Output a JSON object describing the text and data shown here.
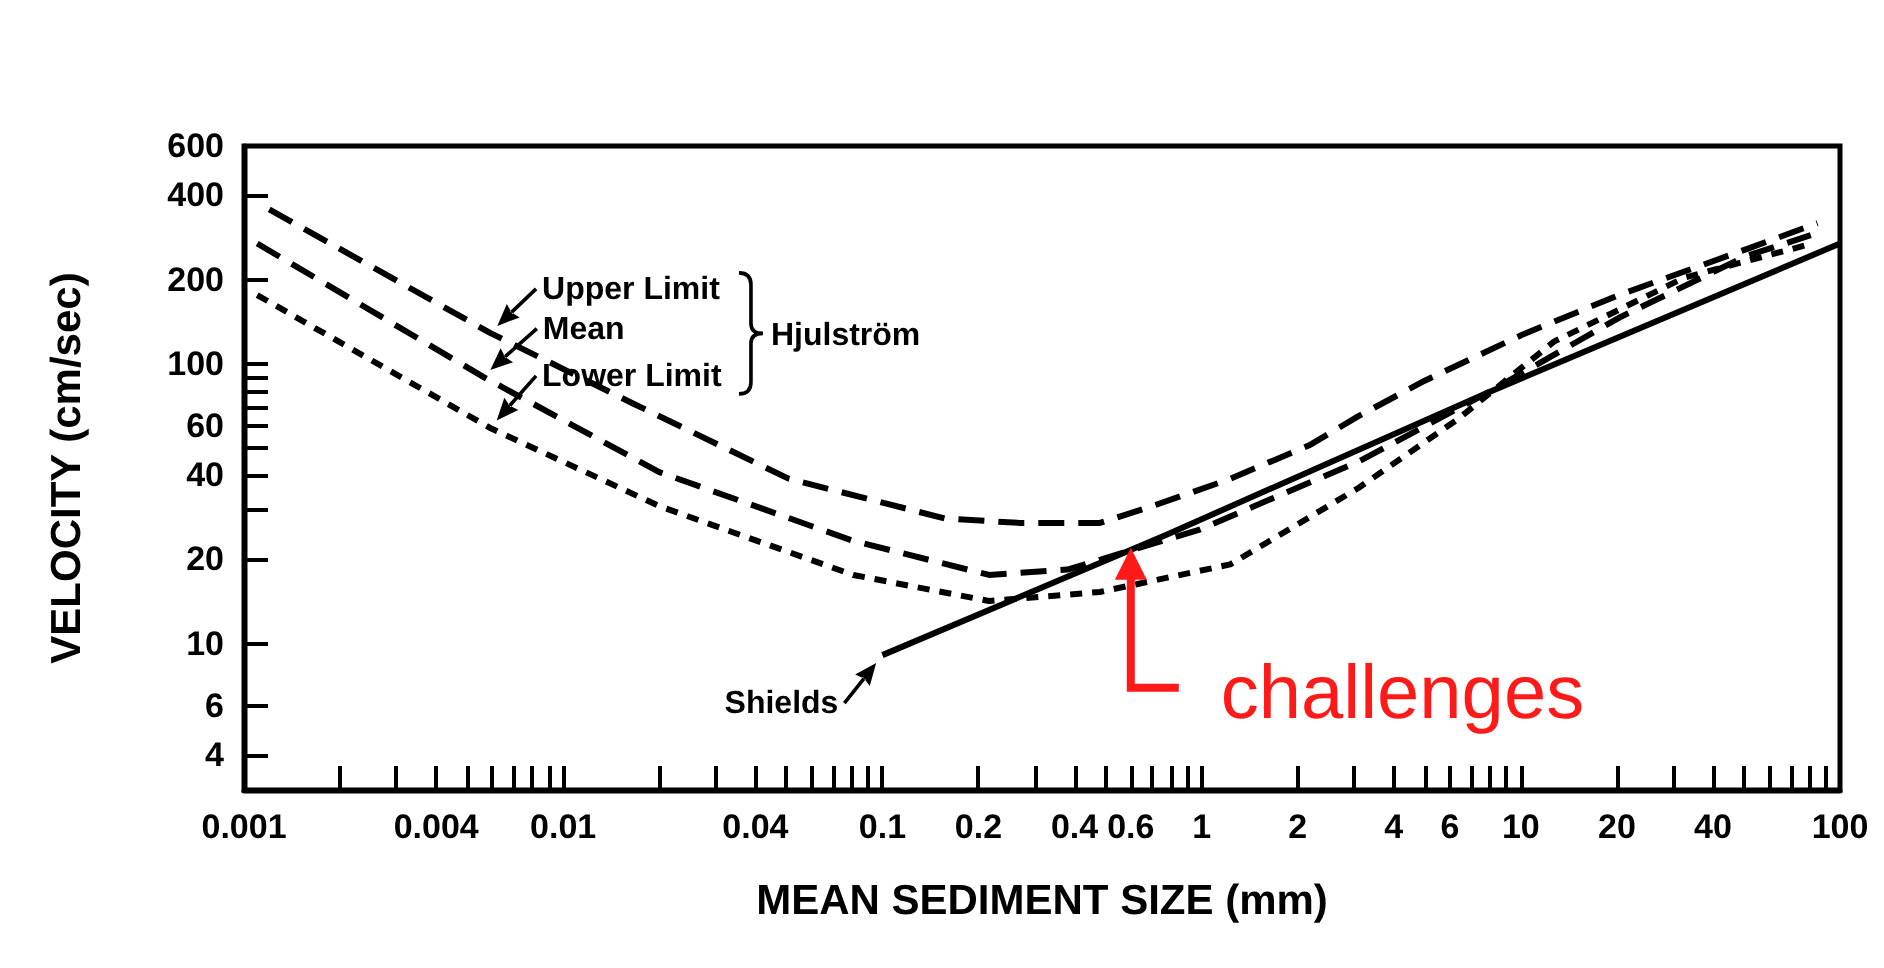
{
  "chart_data": {
    "type": "line",
    "xlabel": "MEAN SEDIMENT SIZE (mm)",
    "ylabel": "VELOCITY (cm/sec)",
    "log": "xy",
    "grid": false,
    "legend": "top left",
    "xlim": [
      0.001,
      100
    ],
    "ylim": [
      3,
      600
    ],
    "xticks": [
      0.001,
      {
        "value": 0.002,
        "label": null
      },
      {
        "value": 0.003,
        "label": null
      },
      0.004,
      {
        "value": 0.005,
        "label": null
      },
      {
        "value": 0.006,
        "label": null
      },
      {
        "value": 0.007,
        "label": null
      },
      {
        "value": 0.008,
        "label": null
      },
      {
        "value": 0.009,
        "label": null
      },
      0.01,
      {
        "value": 0.02,
        "label": null
      },
      {
        "value": 0.03,
        "label": null
      },
      0.04,
      {
        "value": 0.05,
        "label": null
      },
      {
        "value": 0.06,
        "label": null
      },
      {
        "value": 0.07,
        "label": null
      },
      {
        "value": 0.08,
        "label": null
      },
      {
        "value": 0.09,
        "label": null
      },
      0.1,
      0.2,
      {
        "value": 0.3,
        "label": null
      },
      0.4,
      {
        "value": 0.5,
        "label": null
      },
      0.6,
      {
        "value": 0.7,
        "label": null
      },
      {
        "value": 0.8,
        "label": null
      },
      {
        "value": 0.9,
        "label": null
      },
      1,
      2,
      {
        "value": 3,
        "label": null
      },
      4,
      {
        "value": 5,
        "label": null
      },
      6,
      {
        "value": 7,
        "label": null
      },
      {
        "value": 8,
        "label": null
      },
      {
        "value": 9,
        "label": null
      },
      10,
      20,
      {
        "value": 30,
        "label": null
      },
      40,
      {
        "value": 50,
        "label": null
      },
      {
        "value": 60,
        "label": null
      },
      {
        "value": 70,
        "label": null
      },
      {
        "value": 80,
        "label": null
      },
      {
        "value": 90,
        "label": null
      },
      100
    ],
    "yticks": [
      4,
      6,
      10,
      20,
      {
        "value": 30,
        "label": null
      },
      40,
      {
        "value": 50,
        "label": null
      },
      60,
      {
        "value": 70,
        "label": null
      },
      {
        "value": 80,
        "label": null
      },
      {
        "value": 90,
        "label": null
      },
      100,
      200,
      400,
      600
    ],
    "series": [
      {
        "name": "Upper Limit",
        "color": "#000000",
        "line_style": "dashed",
        "x": [
          0.0012,
          0.0059,
          0.0166,
          0.051,
          0.157,
          0.27,
          0.48,
          0.7,
          1.23,
          2.2,
          3.1,
          5.0,
          10.1,
          20.3,
          51,
          85
        ],
        "values": [
          356,
          129,
          72,
          38.8,
          28,
          27,
          27,
          31,
          38.8,
          51.5,
          65,
          87,
          127,
          176,
          257,
          318
        ]
      },
      {
        "name": "Mean",
        "color": "#000000",
        "line_style": "dashed",
        "x": [
          0.0011,
          0.0056,
          0.02,
          0.081,
          0.216,
          0.38,
          0.98,
          3.1,
          7.9,
          20.3,
          51,
          81
        ],
        "values": [
          269,
          90,
          41,
          23.3,
          17.6,
          18.4,
          25.5,
          44.7,
          79,
          146,
          243,
          288
        ]
      },
      {
        "name": "Lower Limit",
        "color": "#000000",
        "line_style": "dotted",
        "x": [
          0.0011,
          0.0059,
          0.02,
          0.081,
          0.216,
          0.48,
          1.23,
          3.1,
          6.3,
          12.7,
          32.5,
          81
        ],
        "values": [
          176,
          59,
          31,
          17.6,
          14.2,
          15.3,
          19.2,
          36,
          63,
          120,
          203,
          268
        ]
      },
      {
        "name": "Shields",
        "color": "#000000",
        "line_style": "solid",
        "x": [
          0.1,
          0.77,
          7.9,
          100
        ],
        "values": [
          9.1,
          24.4,
          79,
          269
        ]
      }
    ],
    "annotations": [
      "Hjulström",
      {
        "text": "challenges",
        "x": 0.6,
        "y": 22
      }
    ]
  }
}
